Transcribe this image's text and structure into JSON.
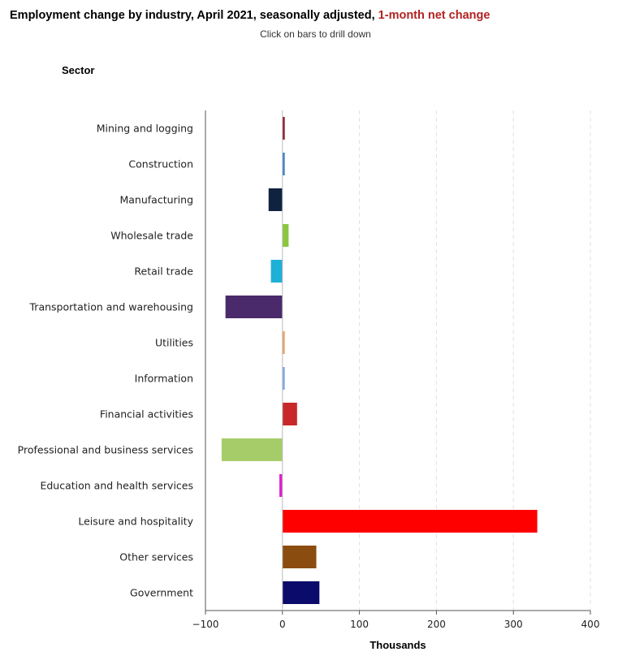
{
  "title": {
    "main": "Employment change by industry, April 2021, seasonally adjusted, ",
    "highlight": "1-month net change",
    "highlight_color": "#b22222"
  },
  "subtitle": "Click on bars to drill down",
  "y_axis_title": "Sector",
  "chart_data": {
    "type": "bar",
    "orientation": "horizontal",
    "xlabel": "Thousands",
    "ylabel": "Sector",
    "xlim": [
      -100,
      400
    ],
    "xticks": [
      -100,
      0,
      100,
      200,
      300,
      400
    ],
    "xtick_labels": [
      "−100",
      "0",
      "100",
      "200",
      "300",
      "400"
    ],
    "grid": "vertical-dashed",
    "categories": [
      "Mining and logging",
      "Construction",
      "Manufacturing",
      "Wholesale trade",
      "Retail trade",
      "Transportation and warehousing",
      "Utilities",
      "Information",
      "Financial activities",
      "Professional and business services",
      "Education and health services",
      "Leisure and hospitality",
      "Other services",
      "Government"
    ],
    "values": [
      3,
      3,
      -18,
      8,
      -15,
      -74,
      3,
      3,
      19,
      -79,
      -4,
      331,
      44,
      48
    ],
    "colors": [
      "#8b1a2b",
      "#3f7fd0",
      "#0f2340",
      "#8cc63f",
      "#1fb0d8",
      "#4a2a6b",
      "#f0a060",
      "#7fa8e8",
      "#c8282a",
      "#a6cc6a",
      "#dd22cc",
      "#ff0000",
      "#8b4c0f",
      "#0b0b6b"
    ]
  }
}
